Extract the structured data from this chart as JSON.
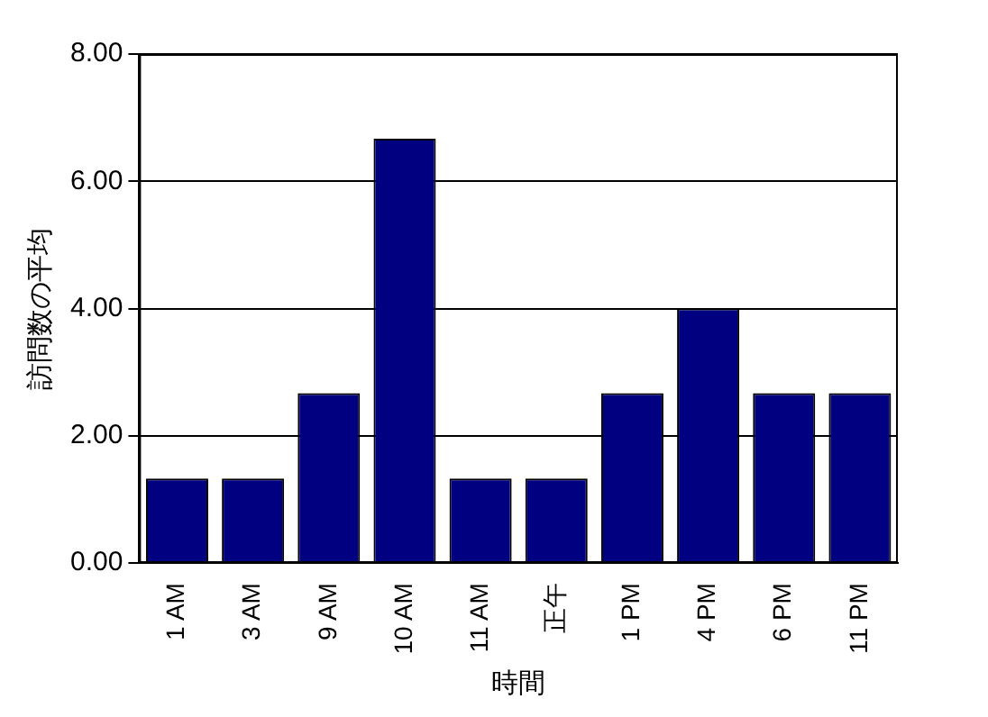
{
  "chart_data": {
    "type": "bar",
    "xlabel": "時間",
    "ylabel": "訪問数の平均",
    "categories": [
      "1 AM",
      "3 AM",
      "9 AM",
      "10 AM",
      "11 AM",
      "正午",
      "1 PM",
      "4 PM",
      "6 PM",
      "11 PM"
    ],
    "values": [
      1.33,
      1.33,
      2.67,
      6.67,
      1.33,
      1.33,
      2.67,
      4,
      2.67,
      2.67
    ],
    "color": "#000080",
    "ylim": [
      0,
      8
    ],
    "yticks": [
      {
        "value": 0,
        "label": "0.00"
      },
      {
        "value": 2,
        "label": "2.00"
      },
      {
        "value": 4,
        "label": "4.00"
      },
      {
        "value": 6,
        "label": "6.00"
      },
      {
        "value": 8,
        "label": "8.00"
      }
    ],
    "grid": "y",
    "legend": false
  }
}
